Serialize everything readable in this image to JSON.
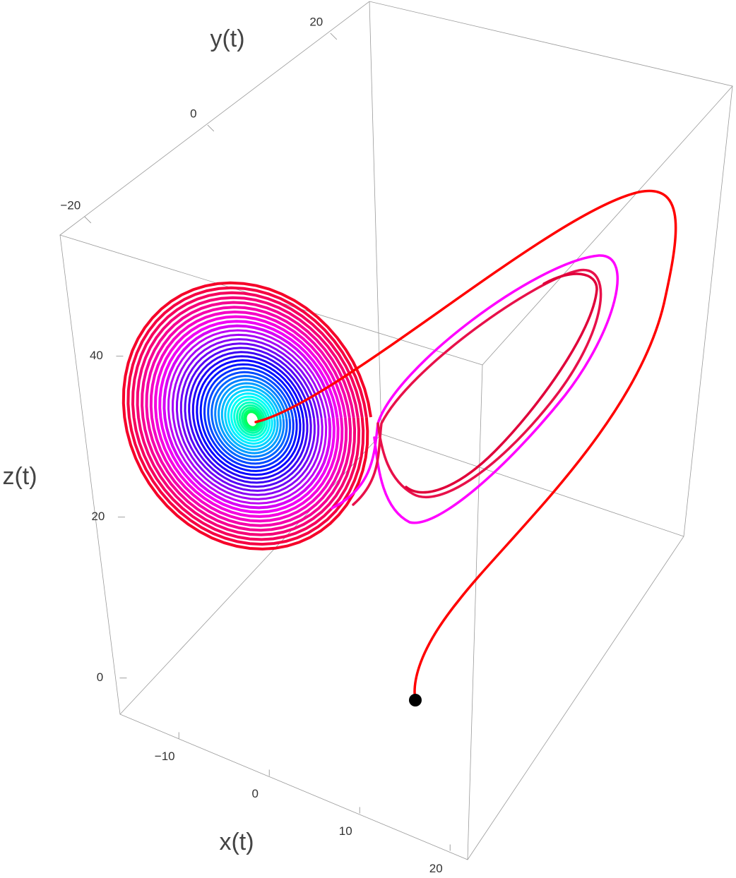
{
  "axes": {
    "x": {
      "label": "x(t)",
      "ticks": [
        {
          "value": -10,
          "label": "−10"
        },
        0,
        10,
        20
      ]
    },
    "y": {
      "label": "y(t)",
      "ticks": [
        {
          "value": -20,
          "label": "−20"
        },
        0,
        20
      ]
    },
    "z": {
      "label": "z(t)",
      "ticks": [
        0,
        20,
        40
      ]
    }
  }
}
